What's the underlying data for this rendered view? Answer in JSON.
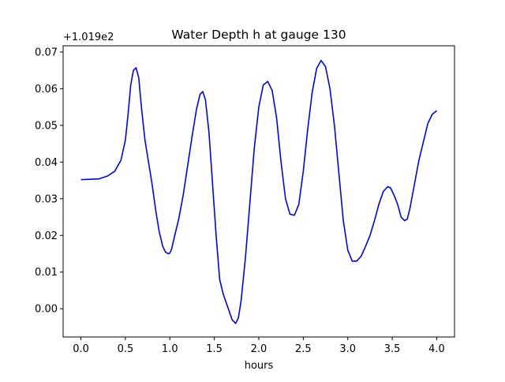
{
  "chart_data": {
    "type": "line",
    "title": "Water Depth h at gauge 130",
    "xlabel": "hours",
    "ylabel": "",
    "y_offset_label": "+1.019e2",
    "xlim": [
      -0.2,
      4.2
    ],
    "ylim": [
      -0.0077,
      0.0717
    ],
    "x_ticks": [
      "0.0",
      "0.5",
      "1.0",
      "1.5",
      "2.0",
      "2.5",
      "3.0",
      "3.5",
      "4.0"
    ],
    "y_ticks": [
      "0.00",
      "0.01",
      "0.02",
      "0.03",
      "0.04",
      "0.05",
      "0.06",
      "0.07"
    ],
    "grid": false,
    "series": [
      {
        "color": "#0000ff",
        "x": [
          0.0,
          0.1,
          0.2,
          0.3,
          0.38,
          0.45,
          0.5,
          0.53,
          0.56,
          0.59,
          0.62,
          0.65,
          0.68,
          0.72,
          0.76,
          0.8,
          0.84,
          0.88,
          0.92,
          0.95,
          0.98,
          1.0,
          1.02,
          1.05,
          1.1,
          1.15,
          1.2,
          1.25,
          1.3,
          1.34,
          1.37,
          1.4,
          1.44,
          1.48,
          1.52,
          1.56,
          1.6,
          1.65,
          1.7,
          1.74,
          1.77,
          1.8,
          1.85,
          1.9,
          1.95,
          2.0,
          2.05,
          2.1,
          2.15,
          2.2,
          2.25,
          2.3,
          2.35,
          2.4,
          2.45,
          2.5,
          2.55,
          2.6,
          2.65,
          2.7,
          2.75,
          2.8,
          2.85,
          2.9,
          2.95,
          3.0,
          3.05,
          3.1,
          3.15,
          3.2,
          3.25,
          3.3,
          3.35,
          3.4,
          3.45,
          3.48,
          3.52,
          3.56,
          3.6,
          3.64,
          3.67,
          3.7,
          3.75,
          3.8,
          3.85,
          3.9,
          3.95,
          4.0
        ],
        "y": [
          0.0352,
          0.0353,
          0.0354,
          0.0362,
          0.0375,
          0.0405,
          0.046,
          0.053,
          0.061,
          0.065,
          0.0657,
          0.063,
          0.055,
          0.046,
          0.04,
          0.034,
          0.027,
          0.021,
          0.017,
          0.0155,
          0.015,
          0.0152,
          0.0163,
          0.0195,
          0.0245,
          0.031,
          0.039,
          0.047,
          0.0545,
          0.0585,
          0.0592,
          0.057,
          0.048,
          0.034,
          0.02,
          0.008,
          0.004,
          0.0005,
          -0.003,
          -0.004,
          -0.0025,
          0.002,
          0.014,
          0.029,
          0.044,
          0.055,
          0.061,
          0.062,
          0.0595,
          0.052,
          0.04,
          0.03,
          0.0258,
          0.0255,
          0.0285,
          0.0375,
          0.049,
          0.059,
          0.0655,
          0.0677,
          0.066,
          0.06,
          0.05,
          0.037,
          0.024,
          0.016,
          0.013,
          0.013,
          0.0143,
          0.017,
          0.02,
          0.024,
          0.0285,
          0.032,
          0.0333,
          0.033,
          0.031,
          0.0285,
          0.025,
          0.024,
          0.0245,
          0.0275,
          0.034,
          0.0405,
          0.0455,
          0.0505,
          0.053,
          0.054
        ]
      }
    ]
  }
}
